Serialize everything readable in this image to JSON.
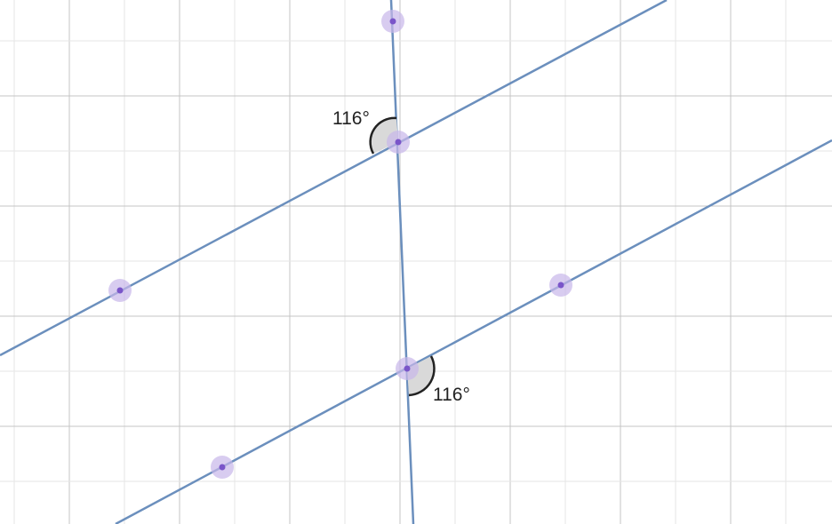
{
  "colors": {
    "background": "#ffffff",
    "grid_major": "#c4c4c4",
    "grid_minor": "#e6e6e6",
    "line": "#6b8fbd",
    "point": "#7a55c9",
    "point_halo": "#c8b6ea",
    "angle_fill": "#d9d9d9",
    "angle_stroke": "#222222"
  },
  "angles": [
    {
      "label": "116°"
    },
    {
      "label": "116°"
    }
  ]
}
